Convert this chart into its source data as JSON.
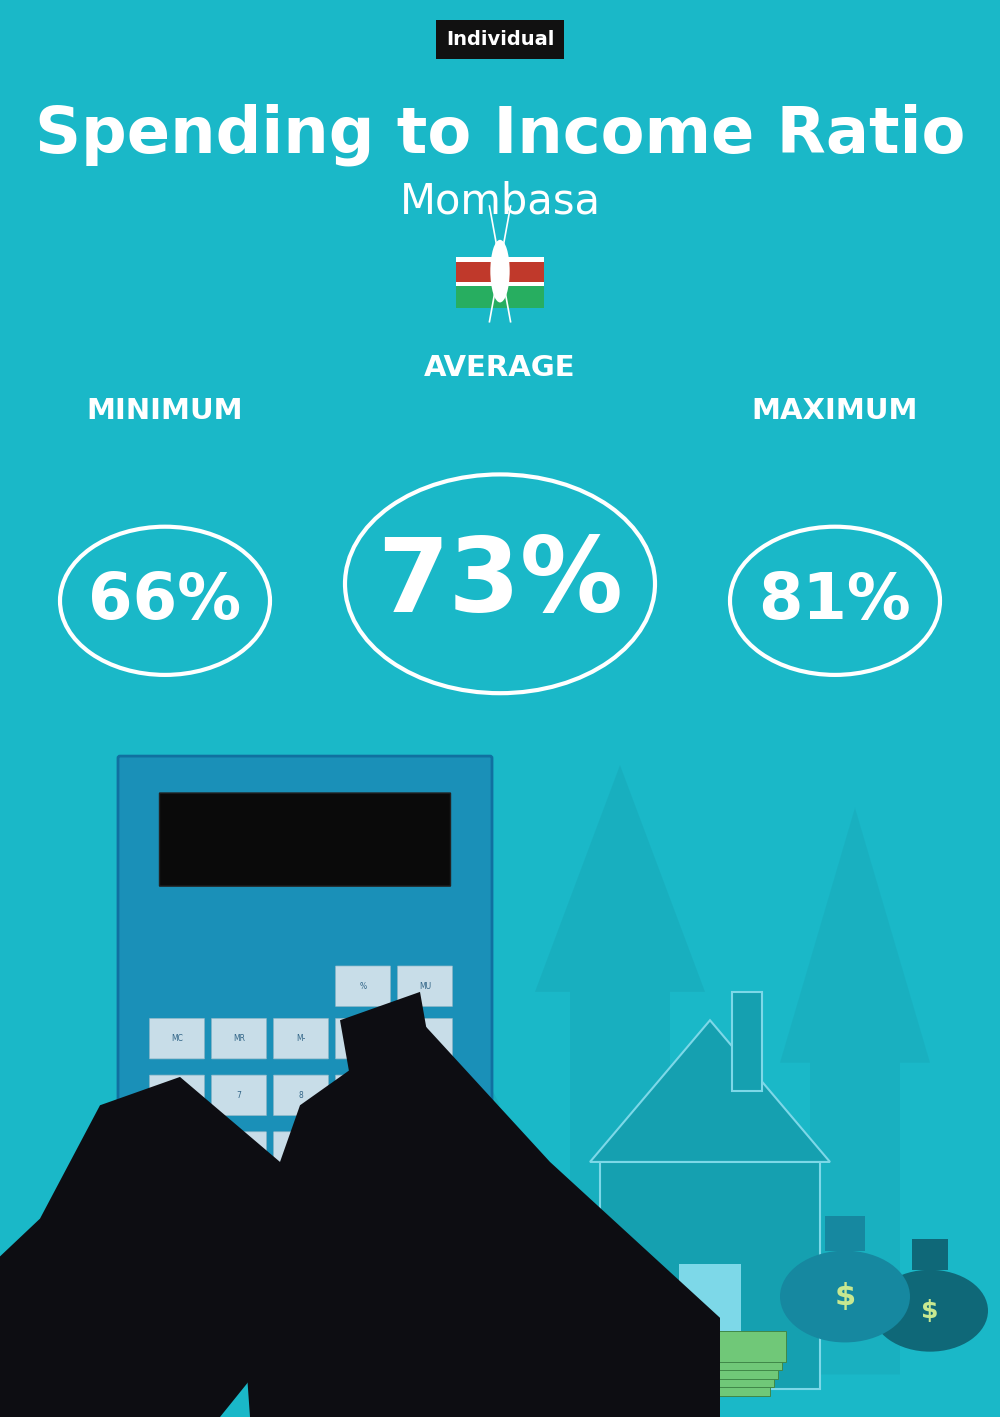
{
  "bg_color": "#1ab8c8",
  "title": "Spending to Income Ratio",
  "subtitle": "Mombasa",
  "tag_text": "Individual",
  "tag_bg": "#111111",
  "tag_color": "#ffffff",
  "label_min": "MINIMUM",
  "label_avg": "AVERAGE",
  "label_max": "MAXIMUM",
  "value_min": "66%",
  "value_avg": "73%",
  "value_max": "81%",
  "circle_color": "white",
  "circle_lw": 3,
  "text_color": "white",
  "title_fontsize": 46,
  "subtitle_fontsize": 30,
  "label_fontsize": 21,
  "value_small_fontsize": 46,
  "value_large_fontsize": 74,
  "tag_fontsize": 14,
  "figsize": [
    10.0,
    14.17
  ],
  "dpi": 100,
  "flag_colors": [
    "#2d3436",
    "#c0392b",
    "#27ae60"
  ],
  "arrow_color": "#18a8b8",
  "house_color": "#15a0b0",
  "house_edge": "#7dd8e8",
  "calc_body": "#1a90b8",
  "calc_screen": "#0a0a0a",
  "btn_color": "#c8dde8",
  "btn_edge": "#90b8c8",
  "hand_color": "#0d0d12",
  "cuff_color": "#80cce0",
  "bag1_color": "#1688a0",
  "bag2_color": "#0f6878",
  "dollar_color": "#c8e890",
  "money_color": "#70c878",
  "money_edge": "#408848"
}
